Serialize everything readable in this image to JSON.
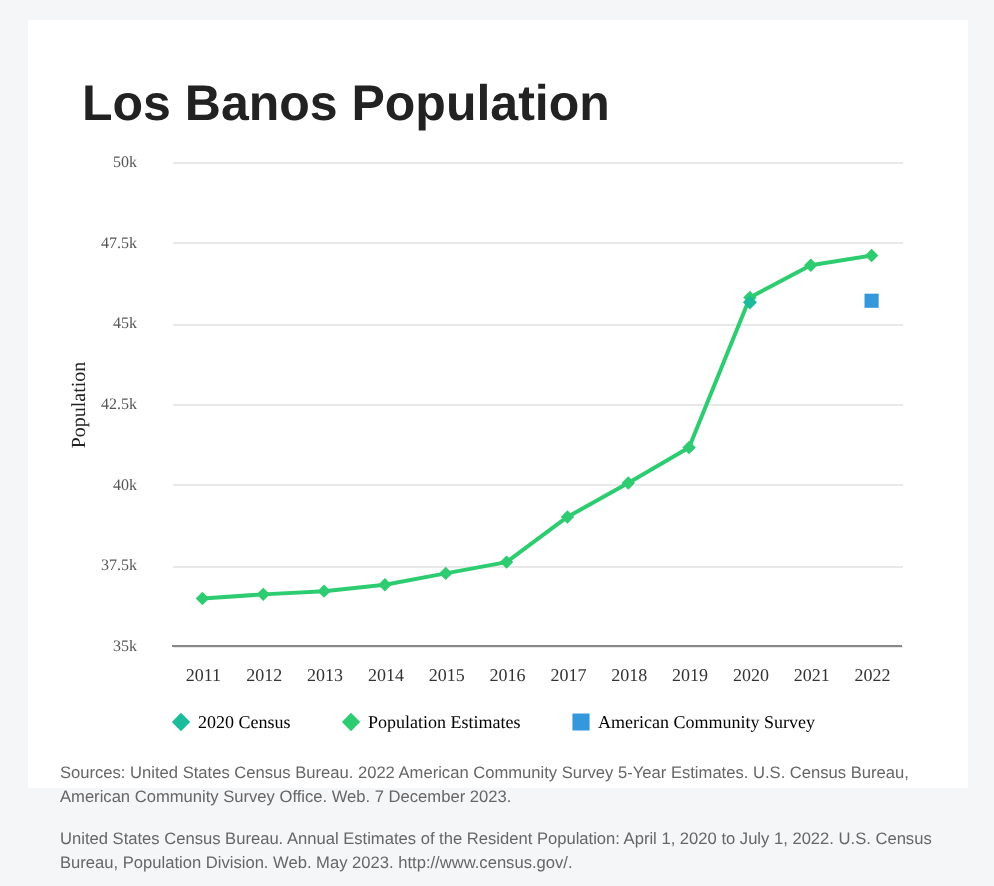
{
  "chart_data": {
    "type": "line",
    "title": "Los Banos Population",
    "ylabel": "Population",
    "x": [
      2011,
      2012,
      2013,
      2014,
      2015,
      2016,
      2017,
      2018,
      2019,
      2020,
      2021,
      2022
    ],
    "xlim": [
      2010.5,
      2022.5
    ],
    "xticks": [
      2011,
      2012,
      2013,
      2014,
      2015,
      2016,
      2017,
      2018,
      2019,
      2020,
      2021,
      2022
    ],
    "series": [
      {
        "name": "2020 Census",
        "type": "scatter",
        "color": "#1abc9c",
        "marker": "diamond",
        "x": [
          2020
        ],
        "values": [
          45650
        ]
      },
      {
        "name": "Population Estimates",
        "color": "#2ecc71",
        "marker": "diamond",
        "values": [
          36470,
          36600,
          36700,
          36900,
          37250,
          37600,
          39000,
          40050,
          41150,
          45800,
          46800,
          47100
        ]
      },
      {
        "name": "American Community Survey",
        "type": "scatter",
        "color": "#3498db",
        "marker": "square",
        "x": [
          2022
        ],
        "values": [
          45700
        ]
      }
    ],
    "ylim": [
      35000,
      50000
    ],
    "yticks": [
      {
        "value": 35000,
        "label": "35k"
      },
      {
        "value": 37500,
        "label": "37.5k"
      },
      {
        "value": 40000,
        "label": "40k"
      },
      {
        "value": 42500,
        "label": "42.5k"
      },
      {
        "value": 45000,
        "label": "45k"
      },
      {
        "value": 47500,
        "label": "47.5k"
      },
      {
        "value": 50000,
        "label": "50k"
      }
    ],
    "grid": "y",
    "legend": "bottom",
    "annotations": [
      "Sources: United States Census Bureau. 2022 American Community Survey 5-Year Estimates. U.S. Census Bureau, American Community Survey Office. Web. 7 December 2023.",
      "United States Census Bureau. Annual Estimates of the Resident Population: April 1, 2020 to July 1, 2022. U.S. Census Bureau, Population Division. Web. May 2023. http://www.census.gov/."
    ]
  }
}
